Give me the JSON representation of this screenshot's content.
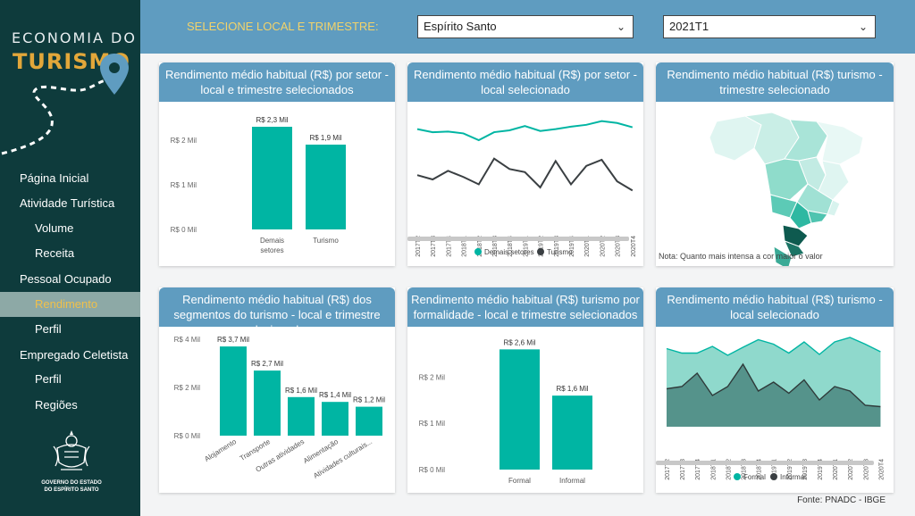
{
  "sidebar": {
    "logo_line1": "ECONOMIA DO",
    "logo_line2": "TURISMO",
    "items": [
      {
        "label": "Página Inicial",
        "level": 0,
        "active": false,
        "id": "pagina-inicial"
      },
      {
        "label": "Atividade Turística",
        "level": 0,
        "active": false,
        "id": "atividade-turistica"
      },
      {
        "label": "Volume",
        "level": 1,
        "active": false,
        "id": "volume"
      },
      {
        "label": "Receita",
        "level": 1,
        "active": false,
        "id": "receita"
      },
      {
        "label": "Pessoal Ocupado",
        "level": 0,
        "active": false,
        "id": "pessoal-ocupado"
      },
      {
        "label": "Rendimento",
        "level": 1,
        "active": true,
        "id": "rendimento"
      },
      {
        "label": "Perfil",
        "level": 1,
        "active": false,
        "id": "perfil"
      },
      {
        "label": "Empregado Celetista",
        "level": 0,
        "active": false,
        "id": "empregado-celetista"
      },
      {
        "label": "Perfil",
        "level": 1,
        "active": false,
        "id": "perfil-celetista"
      },
      {
        "label": "Regiões",
        "level": 1,
        "active": false,
        "id": "regioes"
      }
    ],
    "gov_line1": "GOVERNO DO ESTADO",
    "gov_line2": "DO ESPÍRITO SANTO"
  },
  "filters": {
    "label": "SELECIONE LOCAL E TRIMESTRE:",
    "local": "Espírito Santo",
    "trimestre": "2021T1"
  },
  "colors": {
    "teal": "#00b5a3",
    "dark": "#3a3f42",
    "light_teal": "#8fd9cc",
    "header": "#5f9cc0"
  },
  "footer": "Fonte: PNADC - IBGE",
  "cards": {
    "c1": {
      "title": "Rendimento médio habitual (R$) por setor - local e trimestre selecionados"
    },
    "c2": {
      "title": "Rendimento médio habitual (R$) por setor - local selecionado"
    },
    "c3": {
      "title": "Rendimento médio habitual (R$) turismo - trimestre selecionado",
      "note": "Nota: Quanto mais intensa a cor maior o valor"
    },
    "c4": {
      "title": "Rendimento médio habitual (R$) dos segmentos do turismo - local e trimestre selecionados"
    },
    "c5": {
      "title": "Rendimento médio habitual (R$) turismo por formalidade - local e trimestre selecionados"
    },
    "c6": {
      "title": "Rendimento médio habitual (R$) turismo - local selecionado"
    }
  },
  "chart_data": [
    {
      "id": "c1",
      "type": "bar",
      "categories": [
        "Demais setores",
        "Turismo"
      ],
      "values": [
        2.3,
        1.9
      ],
      "data_labels": [
        "R$ 2,3 Mil",
        "R$ 1,9 Mil"
      ],
      "yticks": [
        "R$ 0 Mil",
        "R$ 1 Mil",
        "R$ 2 Mil"
      ],
      "ylim": [
        0,
        2.5
      ]
    },
    {
      "id": "c2",
      "type": "line",
      "x": [
        "2017T2",
        "2017T3",
        "2017T4",
        "2018T1",
        "2018T2",
        "2018T3",
        "2018T4",
        "2019T1",
        "2019T2",
        "2019T3",
        "2019T4",
        "2020T1",
        "2020T2",
        "2020T3",
        "2020T4"
      ],
      "series": [
        {
          "name": "Demais setores",
          "values": [
            2.3,
            2.25,
            2.26,
            2.23,
            2.12,
            2.25,
            2.28,
            2.35,
            2.27,
            2.3,
            2.34,
            2.37,
            2.43,
            2.4,
            2.33
          ]
        },
        {
          "name": "Turismo",
          "values": [
            1.55,
            1.48,
            1.62,
            1.52,
            1.4,
            1.82,
            1.65,
            1.6,
            1.35,
            1.78,
            1.4,
            1.7,
            1.8,
            1.45,
            1.3
          ]
        }
      ],
      "ylim": [
        1.0,
        2.6
      ],
      "legend": "bottom"
    },
    {
      "id": "c3",
      "type": "map",
      "region": "Brasil"
    },
    {
      "id": "c4",
      "type": "bar",
      "categories": [
        "Alojamento",
        "Transporte",
        "Outras atividades",
        "Alimentação",
        "Atividades culturais..."
      ],
      "values": [
        3.7,
        2.7,
        1.6,
        1.4,
        1.2
      ],
      "data_labels": [
        "R$ 3,7 Mil",
        "R$ 2,7 Mil",
        "R$ 1,6 Mil",
        "R$ 1,4 Mil",
        "R$ 1,2 Mil"
      ],
      "yticks": [
        "R$ 0 Mil",
        "R$ 2 Mil",
        "R$ 4 Mil"
      ],
      "ylim": [
        0,
        4
      ]
    },
    {
      "id": "c5",
      "type": "bar",
      "categories": [
        "Formal",
        "Informal"
      ],
      "values": [
        2.6,
        1.6
      ],
      "data_labels": [
        "R$ 2,6 Mil",
        "R$ 1,6 Mil"
      ],
      "yticks": [
        "R$ 0 Mil",
        "R$ 1 Mil",
        "R$ 2 Mil"
      ],
      "ylim": [
        0,
        2.8
      ]
    },
    {
      "id": "c6",
      "type": "area",
      "x": [
        "2017T2",
        "2017T3",
        "2017T4",
        "2018T1",
        "2018T2",
        "2018T3",
        "2018T4",
        "2019T1",
        "2019T2",
        "2019T3",
        "2019T4",
        "2020T1",
        "2020T2",
        "2020T3",
        "2020T4"
      ],
      "series": [
        {
          "name": "Formal",
          "values": [
            2.35,
            2.25,
            2.25,
            2.4,
            2.2,
            2.38,
            2.55,
            2.45,
            2.25,
            2.5,
            2.22,
            2.5,
            2.6,
            2.45,
            2.28
          ]
        },
        {
          "name": "Informal",
          "values": [
            1.45,
            1.5,
            1.8,
            1.3,
            1.5,
            2.0,
            1.4,
            1.6,
            1.35,
            1.65,
            1.2,
            1.5,
            1.4,
            1.08,
            1.05
          ]
        }
      ],
      "ylim": [
        0.6,
        2.8
      ],
      "legend": "bottom"
    }
  ]
}
